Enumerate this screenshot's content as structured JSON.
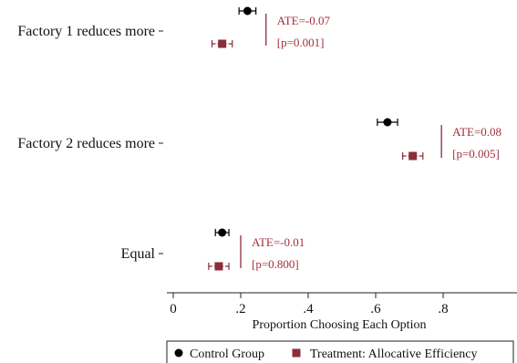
{
  "colors": {
    "control": "#000000",
    "treatment": "#8b2e3c",
    "annotation": "#a0303e",
    "axis": "#222222"
  },
  "chart_data": {
    "type": "dot-whisker",
    "xlabel": "Proportion Choosing Each Option",
    "xlim": [
      -0.02,
      1.0
    ],
    "xticks": [
      {
        "value": 0,
        "label": "0"
      },
      {
        "value": 0.2,
        "label": ".2"
      },
      {
        "value": 0.4,
        "label": ".4"
      },
      {
        "value": 0.6,
        "label": ".6"
      },
      {
        "value": 0.8,
        "label": ".8"
      }
    ],
    "grid": false,
    "legend_position": "bottom",
    "categories": [
      "Factory 1 reduces more",
      "Factory 2 reduces more",
      "Equal"
    ],
    "series": [
      {
        "name": "Control Group",
        "marker": "circle",
        "color": "#000000",
        "estimates": [
          0.22,
          0.635,
          0.145
        ],
        "ci_low": [
          0.195,
          0.605,
          0.125
        ],
        "ci_high": [
          0.245,
          0.665,
          0.165
        ]
      },
      {
        "name": "Treatment: Allocative Efficiency",
        "marker": "square",
        "color": "#8b2e3c",
        "estimates": [
          0.145,
          0.71,
          0.135
        ],
        "ci_low": [
          0.115,
          0.68,
          0.105
        ],
        "ci_high": [
          0.175,
          0.74,
          0.165
        ]
      }
    ],
    "annotations": [
      {
        "category": "Factory 1 reduces more",
        "bar_x": 0.275,
        "ate": "ATE=-0.07",
        "p": "[p=0.001]"
      },
      {
        "category": "Factory 2 reduces more",
        "bar_x": 0.795,
        "ate": "ATE=0.08",
        "p": "[p=0.005]"
      },
      {
        "category": "Equal",
        "bar_x": 0.2,
        "ate": "ATE=-0.01",
        "p": "[p=0.800]"
      }
    ]
  }
}
